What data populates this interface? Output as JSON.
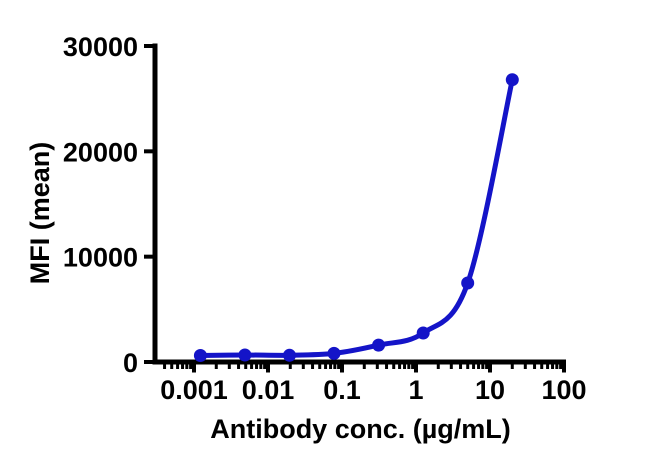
{
  "figure": {
    "background": "#ffffff",
    "axis_color": "#000000",
    "text_color": "#000000"
  },
  "chart_data": {
    "type": "line",
    "title": "",
    "xlabel": "Antibody conc. (µg/mL)",
    "ylabel": "MFI (mean)",
    "x_scale": "log10",
    "xlim": [
      0.0003,
      110
    ],
    "ylim": [
      0,
      30000
    ],
    "x_ticks": [
      0.001,
      0.01,
      0.1,
      1,
      10,
      100
    ],
    "x_tick_labels": [
      "0.001",
      "0.01",
      "0.1",
      "1",
      "10",
      "100"
    ],
    "y_ticks": [
      0,
      10000,
      20000,
      30000
    ],
    "y_tick_labels": [
      "0",
      "10000",
      "20000",
      "30000"
    ],
    "grid": false,
    "legend": "none",
    "series": [
      {
        "name": "antibody-titration",
        "color": "#1414c8",
        "marker": "circle",
        "x": [
          0.00122,
          0.00488,
          0.0195,
          0.078,
          0.3125,
          1.25,
          5,
          20
        ],
        "y": [
          620,
          660,
          640,
          820,
          1600,
          2750,
          7500,
          26800
        ]
      }
    ]
  }
}
